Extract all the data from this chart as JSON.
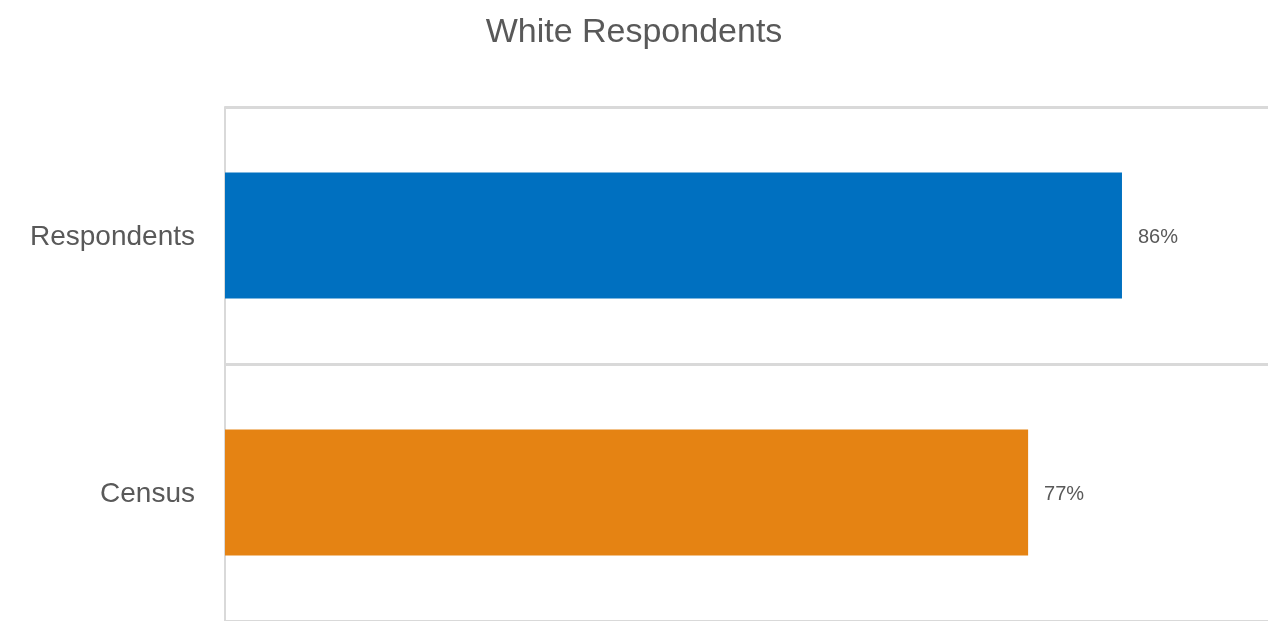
{
  "chart_data": {
    "type": "bar",
    "orientation": "horizontal",
    "title": "White Respondents",
    "categories": [
      "Respondents",
      "Census"
    ],
    "values": [
      86,
      77
    ],
    "colors": [
      "#0070c0",
      "#e58313"
    ],
    "value_labels": [
      "86%",
      "77%"
    ],
    "grid": "y"
  }
}
